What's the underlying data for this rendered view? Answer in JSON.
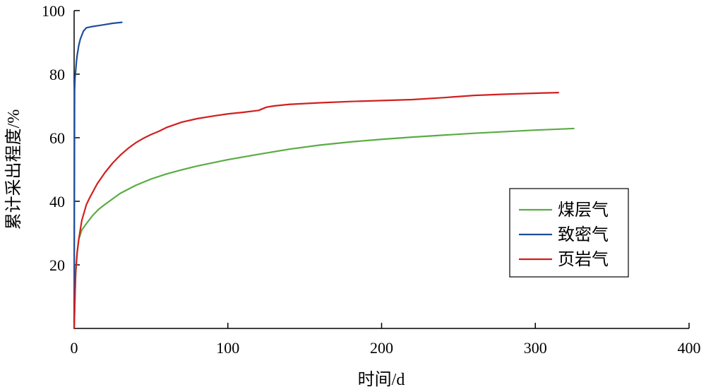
{
  "chart_data": {
    "type": "line",
    "xlabel": "时间/d",
    "ylabel": "累计采出程度/%",
    "xlim": [
      0,
      400
    ],
    "ylim": [
      0,
      100
    ],
    "xticks": [
      0,
      100,
      200,
      300,
      400
    ],
    "yticks": [
      20,
      40,
      60,
      80,
      100
    ],
    "grid": false,
    "legend_position": "right-middle",
    "series": [
      {
        "name": "煤层气",
        "color": "#5aac44",
        "x": [
          0,
          0.5,
          1,
          2,
          3,
          5,
          8,
          12,
          16,
          20,
          30,
          40,
          50,
          60,
          70,
          80,
          90,
          100,
          120,
          140,
          160,
          180,
          200,
          220,
          240,
          260,
          280,
          300,
          325
        ],
        "y": [
          0,
          10,
          17,
          24,
          28,
          31,
          33,
          35.5,
          37.5,
          39,
          42.5,
          45,
          47,
          48.6,
          49.9,
          51.1,
          52.1,
          53.1,
          54.8,
          56.4,
          57.7,
          58.7,
          59.5,
          60.2,
          60.8,
          61.4,
          61.9,
          62.4,
          62.9
        ]
      },
      {
        "name": "致密气",
        "color": "#1f4e9c",
        "x": [
          0,
          0.3,
          0.6,
          1,
          1.5,
          2,
          3,
          4,
          6,
          8,
          12,
          16,
          20,
          25,
          31
        ],
        "y": [
          0,
          75,
          79,
          81,
          84,
          86,
          89,
          91,
          93.5,
          94.6,
          95,
          95.3,
          95.6,
          96,
          96.3
        ]
      },
      {
        "name": "页岩气",
        "color": "#d21f1f",
        "x": [
          0,
          1,
          2,
          3,
          5,
          8,
          10,
          15,
          20,
          25,
          30,
          35,
          40,
          45,
          50,
          55,
          60,
          70,
          80,
          90,
          100,
          110,
          120,
          125,
          130,
          140,
          160,
          180,
          200,
          220,
          240,
          260,
          280,
          300,
          315
        ],
        "y": [
          0,
          18,
          24,
          28,
          34,
          39,
          41,
          45.5,
          49,
          52,
          54.5,
          56.6,
          58.4,
          59.8,
          61,
          62,
          63.2,
          64.9,
          66,
          66.8,
          67.5,
          68,
          68.6,
          69.6,
          70,
          70.5,
          71,
          71.4,
          71.7,
          72,
          72.6,
          73.3,
          73.7,
          74,
          74.2
        ]
      }
    ]
  }
}
